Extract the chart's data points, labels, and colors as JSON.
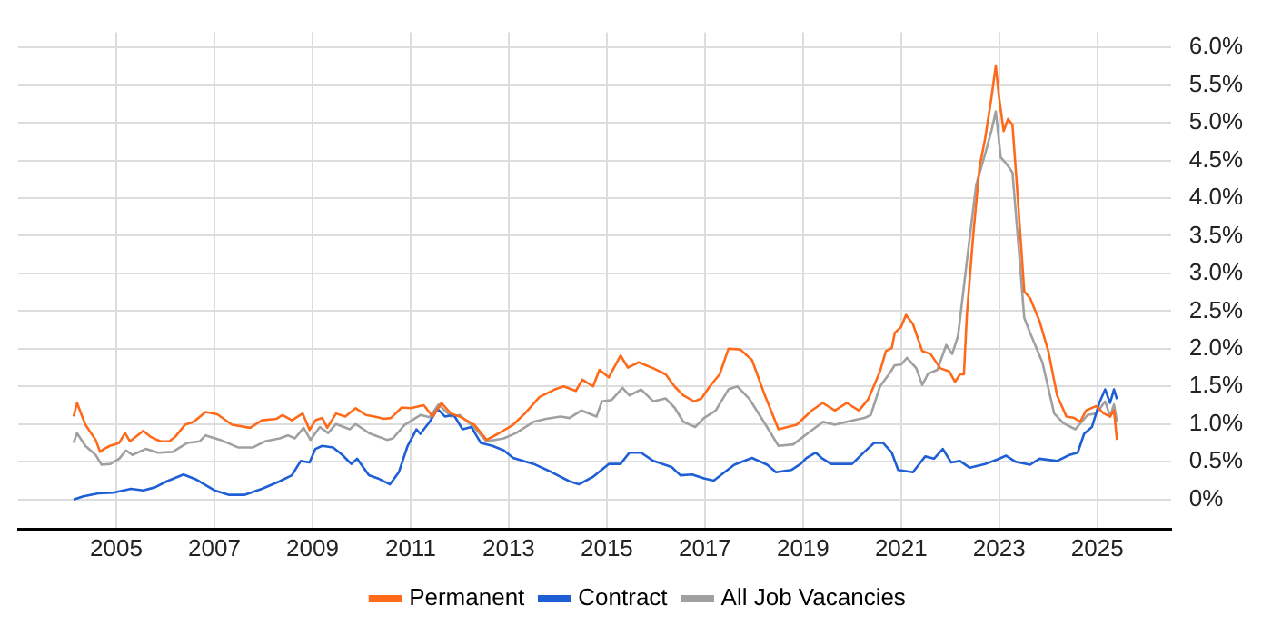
{
  "chart_data": {
    "type": "line",
    "xlim": [
      2003,
      2026.5
    ],
    "xticks": [
      2005,
      2007,
      2009,
      2011,
      2013,
      2015,
      2017,
      2019,
      2021,
      2023,
      2025
    ],
    "ylim": [
      -0.4,
      6.2
    ],
    "yticks": [
      {
        "value": 0,
        "label": "0%"
      },
      {
        "value": 0.5,
        "label": "0.5%"
      },
      {
        "value": 1,
        "label": "1.0%"
      },
      {
        "value": 1.5,
        "label": "1.5%"
      },
      {
        "value": 2,
        "label": "2.0%"
      },
      {
        "value": 2.5,
        "label": "2.5%"
      },
      {
        "value": 3,
        "label": "3.0%"
      },
      {
        "value": 3.5,
        "label": "3.5%"
      },
      {
        "value": 4,
        "label": "4.0%"
      },
      {
        "value": 4.5,
        "label": "4.5%"
      },
      {
        "value": 5,
        "label": "5.0%"
      },
      {
        "value": 5.5,
        "label": "5.5%"
      },
      {
        "value": 6,
        "label": "6.0%"
      }
    ],
    "grid": true,
    "legend": "bottom",
    "marker": "none",
    "line_style": "solid",
    "series": [
      {
        "name": "Permanent",
        "color": "#ff6a1a",
        "x": [
          2004.13,
          2004.2,
          2004.37,
          2004.58,
          2004.67,
          2004.75,
          2004.87,
          2005.06,
          2005.18,
          2005.28,
          2005.55,
          2005.7,
          2005.9,
          2006.08,
          2006.2,
          2006.4,
          2006.58,
          2006.82,
          2007.06,
          2007.36,
          2007.73,
          2007.97,
          2008.27,
          2008.39,
          2008.58,
          2008.8,
          2008.94,
          2009.06,
          2009.2,
          2009.3,
          2009.48,
          2009.67,
          2009.88,
          2010.09,
          2010.33,
          2010.45,
          2010.6,
          2010.82,
          2011.0,
          2011.27,
          2011.45,
          2011.63,
          2011.82,
          2012.0,
          2012.3,
          2012.55,
          2012.78,
          2013.09,
          2013.33,
          2013.63,
          2013.94,
          2014.12,
          2014.37,
          2014.5,
          2014.72,
          2014.85,
          2015.04,
          2015.28,
          2015.43,
          2015.65,
          2015.95,
          2016.2,
          2016.38,
          2016.56,
          2016.78,
          2016.93,
          2017.1,
          2017.3,
          2017.48,
          2017.72,
          2017.96,
          2018.2,
          2018.5,
          2018.87,
          2019.18,
          2019.4,
          2019.65,
          2019.89,
          2020.14,
          2020.33,
          2020.57,
          2020.69,
          2020.81,
          2020.87,
          2021.0,
          2021.1,
          2021.24,
          2021.43,
          2021.6,
          2021.8,
          2021.98,
          2022.1,
          2022.2,
          2022.28,
          2022.34,
          2022.47,
          2022.6,
          2022.71,
          2022.84,
          2022.93,
          2022.99,
          2023.09,
          2023.18,
          2023.27,
          2023.35,
          2023.51,
          2023.63,
          2023.82,
          2024.0,
          2024.18,
          2024.37,
          2024.53,
          2024.65,
          2024.77,
          2024.98,
          2025.13,
          2025.26,
          2025.34,
          2025.4
        ],
        "values": [
          1.1,
          1.28,
          0.99,
          0.79,
          0.63,
          0.67,
          0.71,
          0.75,
          0.88,
          0.77,
          0.91,
          0.83,
          0.77,
          0.77,
          0.83,
          0.99,
          1.03,
          1.16,
          1.13,
          0.99,
          0.95,
          1.05,
          1.07,
          1.12,
          1.05,
          1.14,
          0.92,
          1.05,
          1.08,
          0.95,
          1.14,
          1.1,
          1.21,
          1.12,
          1.09,
          1.07,
          1.08,
          1.22,
          1.21,
          1.25,
          1.1,
          1.28,
          1.14,
          1.1,
          0.99,
          0.79,
          0.87,
          0.99,
          1.14,
          1.36,
          1.46,
          1.5,
          1.44,
          1.59,
          1.5,
          1.72,
          1.62,
          1.91,
          1.75,
          1.82,
          1.74,
          1.66,
          1.5,
          1.38,
          1.3,
          1.34,
          1.5,
          1.66,
          2.0,
          1.99,
          1.85,
          1.42,
          0.93,
          0.99,
          1.18,
          1.28,
          1.18,
          1.28,
          1.18,
          1.33,
          1.7,
          1.97,
          2.01,
          2.21,
          2.29,
          2.45,
          2.33,
          1.97,
          1.93,
          1.74,
          1.7,
          1.56,
          1.66,
          1.66,
          2.45,
          3.51,
          4.42,
          4.78,
          5.33,
          5.76,
          5.37,
          4.89,
          5.05,
          4.97,
          4.26,
          2.76,
          2.67,
          2.37,
          1.97,
          1.38,
          1.1,
          1.08,
          1.03,
          1.18,
          1.24,
          1.14,
          1.1,
          1.18,
          0.79
        ]
      },
      {
        "name": "Contract",
        "color": "#1f5fd6",
        "x": [
          2004.13,
          2004.33,
          2004.64,
          2004.94,
          2005.3,
          2005.55,
          2005.79,
          2006.03,
          2006.37,
          2006.64,
          2007.0,
          2007.3,
          2007.61,
          2007.97,
          2008.33,
          2008.58,
          2008.76,
          2008.94,
          2009.06,
          2009.2,
          2009.42,
          2009.61,
          2009.79,
          2009.91,
          2010.15,
          2010.33,
          2010.58,
          2010.76,
          2010.94,
          2011.12,
          2011.2,
          2011.39,
          2011.55,
          2011.7,
          2011.88,
          2012.06,
          2012.24,
          2012.43,
          2012.67,
          2012.9,
          2013.09,
          2013.51,
          2013.88,
          2014.24,
          2014.43,
          2014.72,
          2015.04,
          2015.28,
          2015.46,
          2015.7,
          2015.95,
          2016.32,
          2016.5,
          2016.74,
          2016.98,
          2017.18,
          2017.4,
          2017.6,
          2017.96,
          2018.27,
          2018.45,
          2018.76,
          2018.95,
          2019.07,
          2019.26,
          2019.38,
          2019.57,
          2019.65,
          2020.0,
          2020.25,
          2020.45,
          2020.63,
          2020.81,
          2020.94,
          2021.24,
          2021.49,
          2021.67,
          2021.85,
          2022.02,
          2022.2,
          2022.4,
          2022.71,
          2022.96,
          2023.14,
          2023.33,
          2023.63,
          2023.82,
          2024.18,
          2024.43,
          2024.6,
          2024.73,
          2024.89,
          2025.04,
          2025.16,
          2025.26,
          2025.34,
          2025.4
        ],
        "values": [
          0.0,
          0.04,
          0.08,
          0.09,
          0.14,
          0.12,
          0.16,
          0.24,
          0.33,
          0.26,
          0.12,
          0.06,
          0.06,
          0.14,
          0.24,
          0.32,
          0.51,
          0.49,
          0.67,
          0.71,
          0.69,
          0.59,
          0.47,
          0.54,
          0.32,
          0.28,
          0.2,
          0.36,
          0.71,
          0.93,
          0.87,
          1.03,
          1.2,
          1.1,
          1.12,
          0.93,
          0.96,
          0.75,
          0.71,
          0.65,
          0.55,
          0.47,
          0.36,
          0.24,
          0.2,
          0.3,
          0.47,
          0.47,
          0.62,
          0.62,
          0.51,
          0.43,
          0.32,
          0.33,
          0.28,
          0.25,
          0.36,
          0.46,
          0.55,
          0.46,
          0.36,
          0.39,
          0.47,
          0.55,
          0.62,
          0.55,
          0.47,
          0.47,
          0.47,
          0.63,
          0.75,
          0.75,
          0.62,
          0.39,
          0.36,
          0.57,
          0.54,
          0.67,
          0.49,
          0.51,
          0.42,
          0.47,
          0.53,
          0.58,
          0.5,
          0.46,
          0.54,
          0.51,
          0.59,
          0.62,
          0.87,
          0.96,
          1.28,
          1.46,
          1.28,
          1.46,
          1.33
        ]
      },
      {
        "name": "All Job Vacancies",
        "color": "#a0a0a0",
        "x": [
          2004.13,
          2004.2,
          2004.37,
          2004.58,
          2004.7,
          2004.88,
          2005.06,
          2005.2,
          2005.33,
          2005.6,
          2005.85,
          2006.15,
          2006.45,
          2006.7,
          2006.82,
          2007.12,
          2007.48,
          2007.79,
          2008.03,
          2008.33,
          2008.5,
          2008.64,
          2008.82,
          2008.96,
          2009.15,
          2009.32,
          2009.48,
          2009.76,
          2009.88,
          2010.15,
          2010.52,
          2010.64,
          2010.88,
          2011.2,
          2011.39,
          2011.57,
          2011.82,
          2012.0,
          2012.3,
          2012.55,
          2012.9,
          2013.15,
          2013.51,
          2013.76,
          2014.06,
          2014.24,
          2014.48,
          2014.79,
          2014.9,
          2015.1,
          2015.32,
          2015.46,
          2015.7,
          2015.95,
          2016.2,
          2016.38,
          2016.56,
          2016.8,
          2016.98,
          2017.22,
          2017.48,
          2017.66,
          2017.9,
          2018.2,
          2018.5,
          2018.8,
          2019.1,
          2019.41,
          2019.65,
          2019.89,
          2020.25,
          2020.38,
          2020.57,
          2020.75,
          2020.87,
          2021.0,
          2021.12,
          2021.31,
          2021.43,
          2021.55,
          2021.74,
          2021.92,
          2022.04,
          2022.16,
          2022.34,
          2022.53,
          2022.71,
          2022.84,
          2022.93,
          2023.03,
          2023.14,
          2023.27,
          2023.39,
          2023.51,
          2023.63,
          2023.88,
          2024.12,
          2024.31,
          2024.55,
          2024.8,
          2024.98,
          2025.16,
          2025.26,
          2025.34,
          2025.4
        ],
        "values": [
          0.75,
          0.88,
          0.71,
          0.59,
          0.46,
          0.47,
          0.54,
          0.65,
          0.59,
          0.67,
          0.62,
          0.63,
          0.75,
          0.77,
          0.85,
          0.79,
          0.69,
          0.69,
          0.77,
          0.81,
          0.85,
          0.81,
          0.95,
          0.79,
          0.96,
          0.88,
          1.0,
          0.93,
          1.0,
          0.88,
          0.79,
          0.81,
          0.99,
          1.12,
          1.09,
          1.26,
          1.1,
          1.12,
          0.95,
          0.77,
          0.81,
          0.88,
          1.03,
          1.07,
          1.1,
          1.08,
          1.18,
          1.1,
          1.3,
          1.32,
          1.48,
          1.38,
          1.46,
          1.3,
          1.34,
          1.22,
          1.03,
          0.96,
          1.08,
          1.18,
          1.46,
          1.5,
          1.34,
          1.03,
          0.71,
          0.73,
          0.88,
          1.03,
          0.99,
          1.03,
          1.08,
          1.12,
          1.5,
          1.66,
          1.78,
          1.79,
          1.88,
          1.74,
          1.52,
          1.67,
          1.72,
          2.05,
          1.93,
          2.17,
          3.16,
          4.18,
          4.58,
          4.89,
          5.15,
          4.54,
          4.46,
          4.34,
          3.39,
          2.41,
          2.21,
          1.82,
          1.14,
          1.01,
          0.93,
          1.12,
          1.14,
          1.3,
          1.1,
          1.26,
          1.03
        ]
      }
    ]
  }
}
